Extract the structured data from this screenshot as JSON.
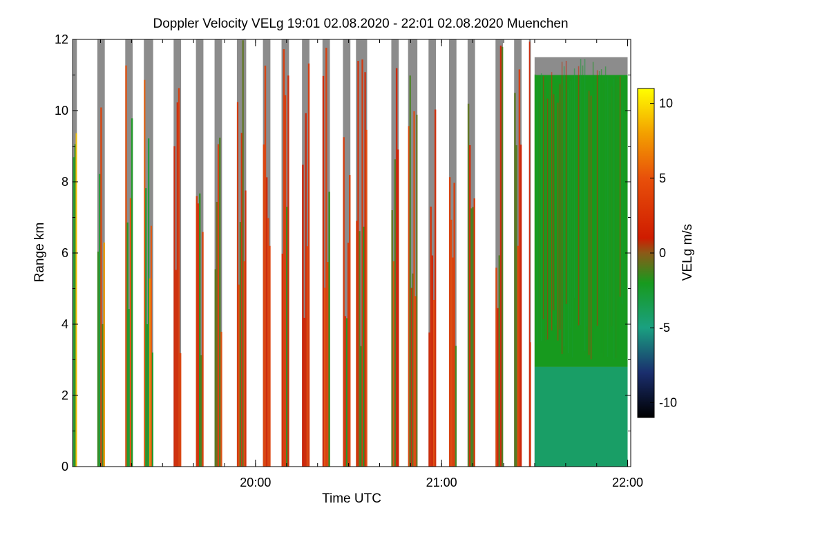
{
  "chart_data": {
    "type": "heatmap",
    "title": "Doppler Velocity VELg   19:01 02.08.2020 - 22:01 02.08.2020 Muenchen",
    "xlabel": "Time UTC",
    "ylabel": "Range km",
    "x_range_hours": [
      19.0167,
      22.0167
    ],
    "ylim": [
      0,
      12
    ],
    "y_ticks": [
      0,
      2,
      4,
      6,
      8,
      10,
      12
    ],
    "x_ticks": [
      {
        "hour": 20.0,
        "label": "20:00"
      },
      {
        "hour": 21.0,
        "label": "21:00"
      },
      {
        "hour": 22.0,
        "label": "22:00"
      }
    ],
    "x_minor_step_hours": 0.16667,
    "colorbar": {
      "label": "VELg m/s",
      "range": [
        -11,
        11
      ],
      "ticks": [
        -10,
        -5,
        0,
        5,
        10
      ],
      "colormap": [
        {
          "v": -11,
          "color": "#000000"
        },
        {
          "v": -8,
          "color": "#1a2e6e"
        },
        {
          "v": -5,
          "color": "#1aa080"
        },
        {
          "v": -2,
          "color": "#179a1e"
        },
        {
          "v": 0,
          "color": "#8b5a17"
        },
        {
          "v": 1,
          "color": "#cf1c00"
        },
        {
          "v": 5,
          "color": "#e8500a"
        },
        {
          "v": 8,
          "color": "#f3a000"
        },
        {
          "v": 11,
          "color": "#ffff00"
        }
      ]
    },
    "scan_segments": [
      {
        "t0": 19.02,
        "t1": 19.04,
        "top_km": 12.0,
        "regime": "mixed"
      },
      {
        "t0": 19.15,
        "t1": 19.19,
        "top_km": 12.0,
        "regime": "mixed"
      },
      {
        "t0": 19.3,
        "t1": 19.34,
        "top_km": 12.0,
        "regime": "mixed"
      },
      {
        "t0": 19.4,
        "t1": 19.45,
        "top_km": 12.0,
        "regime": "mixed"
      },
      {
        "t0": 19.56,
        "t1": 19.6,
        "top_km": 12.0,
        "regime": "red"
      },
      {
        "t0": 19.68,
        "t1": 19.72,
        "top_km": 12.0,
        "regime": "red"
      },
      {
        "t0": 19.78,
        "t1": 19.82,
        "top_km": 12.0,
        "regime": "red"
      },
      {
        "t0": 19.9,
        "t1": 19.95,
        "top_km": 12.0,
        "regime": "red"
      },
      {
        "t0": 20.04,
        "t1": 20.08,
        "top_km": 12.0,
        "regime": "red"
      },
      {
        "t0": 20.14,
        "t1": 20.18,
        "top_km": 12.0,
        "regime": "red"
      },
      {
        "t0": 20.25,
        "t1": 20.29,
        "top_km": 12.0,
        "regime": "red"
      },
      {
        "t0": 20.36,
        "t1": 20.4,
        "top_km": 12.0,
        "regime": "red"
      },
      {
        "t0": 20.47,
        "t1": 20.51,
        "top_km": 12.0,
        "regime": "red"
      },
      {
        "t0": 20.54,
        "t1": 20.6,
        "top_km": 12.0,
        "regime": "red"
      },
      {
        "t0": 20.73,
        "t1": 20.77,
        "top_km": 12.0,
        "regime": "red"
      },
      {
        "t0": 20.82,
        "t1": 20.87,
        "top_km": 12.0,
        "regime": "red"
      },
      {
        "t0": 20.93,
        "t1": 20.97,
        "top_km": 12.0,
        "regime": "red"
      },
      {
        "t0": 21.04,
        "t1": 21.08,
        "top_km": 12.0,
        "regime": "red"
      },
      {
        "t0": 21.14,
        "t1": 21.18,
        "top_km": 12.0,
        "regime": "red"
      },
      {
        "t0": 21.29,
        "t1": 21.33,
        "top_km": 12.0,
        "regime": "red"
      },
      {
        "t0": 21.39,
        "t1": 21.43,
        "top_km": 12.0,
        "regime": "red"
      },
      {
        "t0": 21.47,
        "t1": 21.48,
        "top_km": 12.0,
        "regime": "red"
      },
      {
        "t0": 21.5,
        "t1": 22.0,
        "top_km": 11.5,
        "regime": "continuous"
      }
    ]
  }
}
